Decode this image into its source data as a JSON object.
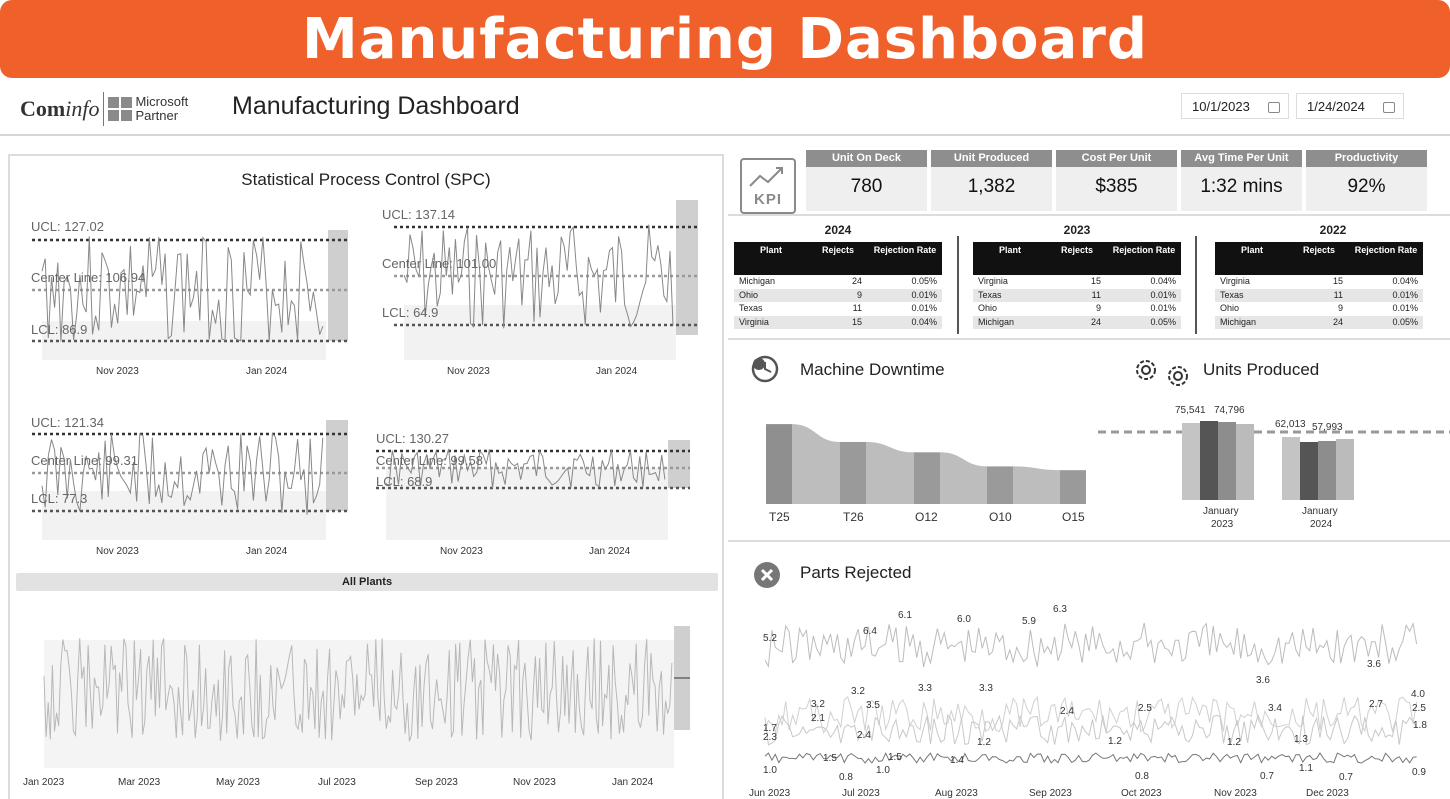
{
  "banner": {
    "title": "Manufacturing Dashboard"
  },
  "header": {
    "logo_text_bold": "Com",
    "logo_text_italic": "info",
    "logo_partner_line1": "Microsoft",
    "logo_partner_line2": "Partner",
    "title": "Manufacturing Dashboard",
    "date_start": "10/1/2023",
    "date_end": "1/24/2024"
  },
  "spc": {
    "title": "Statistical Process Control (SPC)",
    "charts": [
      {
        "ucl": "UCL: 127.02",
        "center": "Center Line: 106.94",
        "lcl": "LCL: 86.9",
        "x1": "Nov 2023",
        "x2": "Jan 2024"
      },
      {
        "ucl": "UCL: 137.14",
        "center": "Center Line: 101.00",
        "lcl": "LCL: 64.9",
        "x1": "Nov 2023",
        "x2": "Jan 2024"
      },
      {
        "ucl": "UCL: 121.34",
        "center": "Center Line: 99.31",
        "lcl": "LCL: 77.3",
        "x1": "Nov 2023",
        "x2": "Jan 2024"
      },
      {
        "ucl": "UCL: 130.27",
        "center": "Center Line: 99.58",
        "lcl": "LCL: 68.9",
        "x1": "Nov 2023",
        "x2": "Jan 2024"
      }
    ],
    "all_plants_label": "All Plants",
    "all_axis": [
      "Jan 2023",
      "Mar 2023",
      "May 2023",
      "Jul 2023",
      "Sep 2023",
      "Nov 2023",
      "Jan 2024"
    ]
  },
  "kpi": {
    "icon_text": "KPI",
    "cards": [
      {
        "label": "Unit On Deck",
        "value": "780"
      },
      {
        "label": "Unit Produced",
        "value": "1,382"
      },
      {
        "label": "Cost Per Unit",
        "value": "$385"
      },
      {
        "label": "Avg Time Per Unit",
        "value": "1:32 mins"
      },
      {
        "label": "Productivity",
        "value": "92%"
      }
    ]
  },
  "rejections": {
    "headers": {
      "plant": "Plant",
      "rejects": "Rejects",
      "rate": "Rejection Rate"
    },
    "tables": [
      {
        "year": "2024",
        "rows": [
          {
            "plant": "Michigan",
            "rejects": "24",
            "rate": "0.05%"
          },
          {
            "plant": "Ohio",
            "rejects": "9",
            "rate": "0.01%"
          },
          {
            "plant": "Texas",
            "rejects": "11",
            "rate": "0.01%"
          },
          {
            "plant": "Virginia",
            "rejects": "15",
            "rate": "0.04%"
          }
        ]
      },
      {
        "year": "2023",
        "rows": [
          {
            "plant": "Virginia",
            "rejects": "15",
            "rate": "0.04%"
          },
          {
            "plant": "Texas",
            "rejects": "11",
            "rate": "0.01%"
          },
          {
            "plant": "Ohio",
            "rejects": "9",
            "rate": "0.01%"
          },
          {
            "plant": "Michigan",
            "rejects": "24",
            "rate": "0.05%"
          }
        ]
      },
      {
        "year": "2022",
        "rows": [
          {
            "plant": "Virginia",
            "rejects": "15",
            "rate": "0.04%"
          },
          {
            "plant": "Texas",
            "rejects": "11",
            "rate": "0.01%"
          },
          {
            "plant": "Ohio",
            "rejects": "9",
            "rate": "0.01%"
          },
          {
            "plant": "Michigan",
            "rejects": "24",
            "rate": "0.05%"
          }
        ]
      }
    ]
  },
  "downtime": {
    "title": "Machine Downtime",
    "machines": [
      "T25",
      "T26",
      "O12",
      "O10",
      "O15"
    ]
  },
  "units_produced": {
    "title": "Units Produced",
    "groups": [
      {
        "month": "January",
        "year": "2023",
        "labels": [
          "75,541",
          "74,796"
        ]
      },
      {
        "month": "January",
        "year": "2024",
        "labels": [
          "62,013",
          "57,993"
        ]
      }
    ]
  },
  "parts_rejected": {
    "title": "Parts Rejected",
    "x_axis": [
      "Jun 2023",
      "Jul 2023",
      "Aug 2023",
      "Sep 2023",
      "Oct 2023",
      "Nov 2023",
      "Dec 2023"
    ],
    "labels": [
      "5.2",
      "6.4",
      "6.1",
      "6.0",
      "5.9",
      "6.3",
      "3.2",
      "3.3",
      "3.3",
      "3.6",
      "4.0",
      "3.6",
      "2.1",
      "3.5",
      "3.2",
      "2.4",
      "2.5",
      "3.4",
      "2.7",
      "2.5",
      "1.7",
      "2.3",
      "2.4",
      "1.2",
      "1.2",
      "1.2",
      "1.3",
      "1.8",
      "1.0",
      "0.8",
      "1.5",
      "1.0",
      "1.5",
      "1.4",
      "0.8",
      "0.7",
      "1.1",
      "0.7",
      "0.9"
    ]
  },
  "chart_data": [
    {
      "type": "bar",
      "title": "Machine Downtime",
      "categories": [
        "T25",
        "T26",
        "O12",
        "O10",
        "O15"
      ],
      "values": [
        85,
        66,
        55,
        40,
        36
      ]
    },
    {
      "type": "bar",
      "title": "Units Produced",
      "categories": [
        "January 2023",
        "January 2024"
      ],
      "series": [
        {
          "values": [
            75541,
            74796
          ]
        },
        {
          "values": [
            62013,
            57993
          ]
        }
      ]
    }
  ]
}
